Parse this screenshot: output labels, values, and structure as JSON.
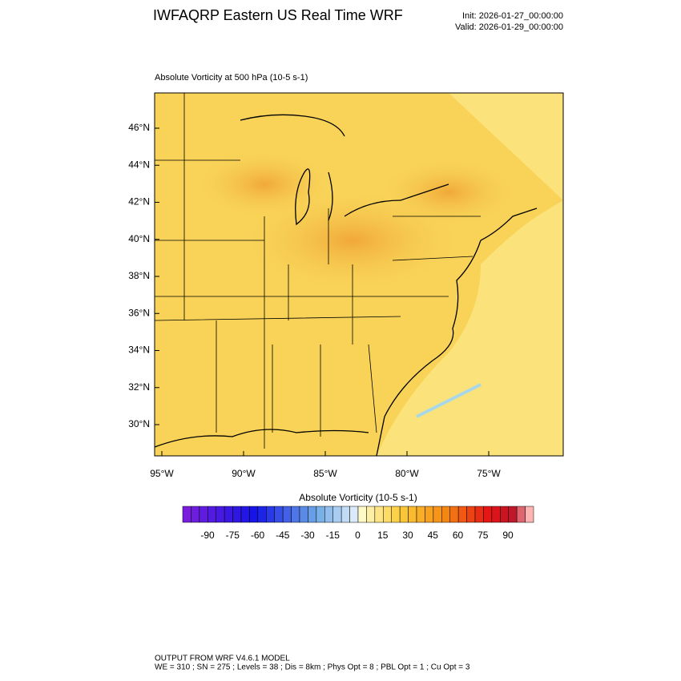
{
  "header": {
    "title": "IWFAQRP Eastern US Real Time WRF",
    "init": "Init: 2026-01-27_00:00:00",
    "valid": "Valid: 2026-01-29_00:00:00"
  },
  "map": {
    "subtitle": "Absolute Vorticity at 500 hPa   (10-5 s-1)",
    "lat_labels": [
      "46°N",
      "44°N",
      "42°N",
      "40°N",
      "38°N",
      "36°N",
      "34°N",
      "32°N",
      "30°N"
    ],
    "lon_labels": [
      "95°W",
      "90°W",
      "85°W",
      "80°W",
      "75°W"
    ]
  },
  "colorbar": {
    "title": "Absolute Vorticity  (10-5 s-1)",
    "labels": [
      "-90",
      "-75",
      "-60",
      "-45",
      "-30",
      "-15",
      "0",
      "15",
      "30",
      "45",
      "60",
      "75",
      "90"
    ]
  },
  "footer": {
    "line1": "OUTPUT FROM WRF V4.6.1 MODEL",
    "line2": "WE = 310 ; SN = 275 ; Levels = 38 ; Dis = 8km ; Phys Opt = 8 ; PBL Opt = 1 ; Cu Opt = 3"
  }
}
